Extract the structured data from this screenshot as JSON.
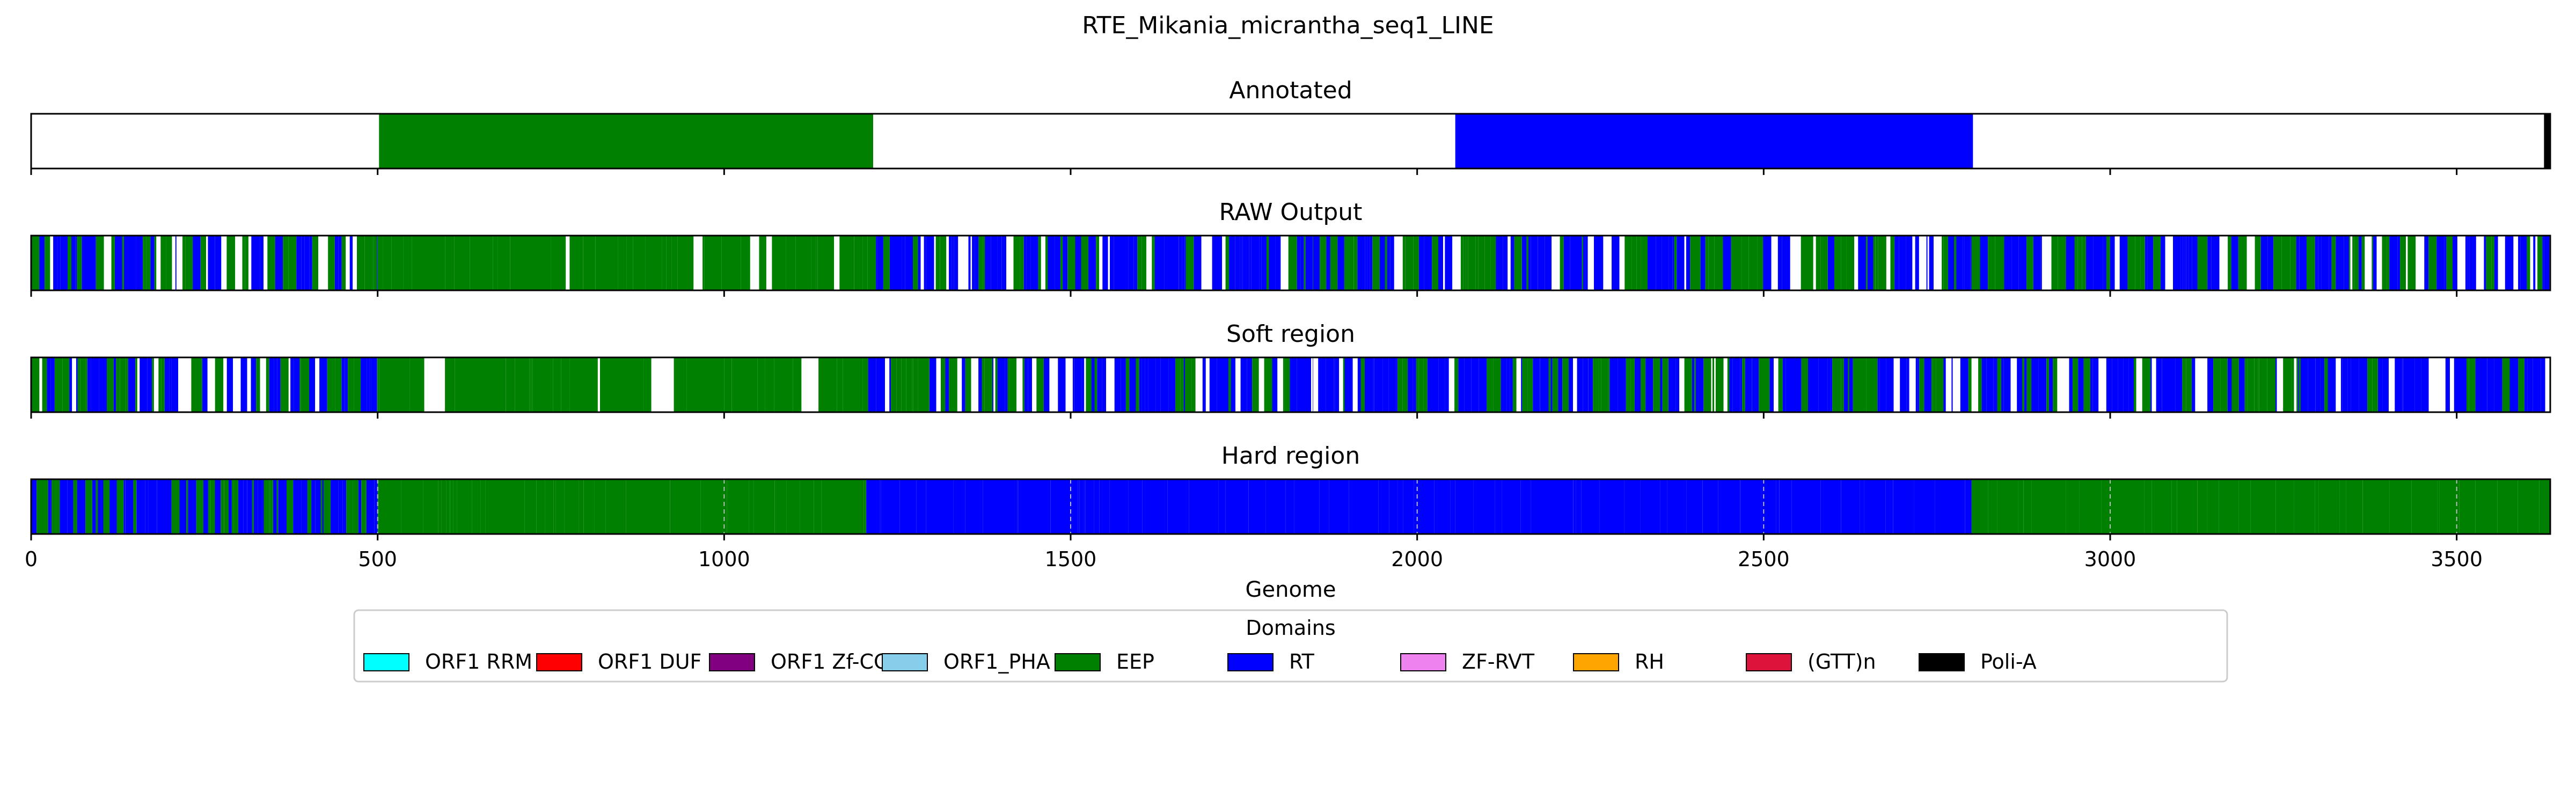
{
  "chart_data": {
    "type": "bar",
    "title": "RTE_Mikania_micrantha_seq1_LINE",
    "xlabel": "Genome",
    "xlim": [
      0,
      3635
    ],
    "xticks": [
      0,
      500,
      1000,
      1500,
      2000,
      2500,
      3000,
      3500
    ],
    "xtick_labels": [
      "0",
      "500",
      "1000",
      "1500",
      "2000",
      "2500",
      "3000",
      "3500"
    ],
    "legend": {
      "title": "Domains",
      "placement": "bottom-center",
      "entries": [
        {
          "name": "ORF1 RRM",
          "color": "#00ffff"
        },
        {
          "name": "ORF1 DUF",
          "color": "#ff0000"
        },
        {
          "name": "ORF1 Zf-CCHC",
          "color": "#800080"
        },
        {
          "name": "ORF1_PHA",
          "color": "#87ceeb"
        },
        {
          "name": "EEP",
          "color": "#008000"
        },
        {
          "name": "RT",
          "color": "#0000ff"
        },
        {
          "name": "ZF-RVT",
          "color": "#ee82ee"
        },
        {
          "name": "RH",
          "color": "#ffa500"
        },
        {
          "name": "(GTT)n",
          "color": "#dc143c"
        },
        {
          "name": "Poli-A",
          "color": "#000000"
        }
      ]
    },
    "tracks": [
      {
        "title": "Annotated",
        "mode": "exact",
        "segments": [
          {
            "domain": "EEP",
            "start": 502,
            "end": 1215
          },
          {
            "domain": "RT",
            "start": 2055,
            "end": 2802
          },
          {
            "domain": "Poli-A",
            "start": 3626,
            "end": 3635
          }
        ]
      },
      {
        "title": "RAW Output",
        "mode": "mixed",
        "segments": [
          {
            "domain": "RT",
            "start": 0,
            "end": 500
          },
          {
            "domain": "EEP",
            "start": 500,
            "end": 1200
          },
          {
            "domain": "RT",
            "start": 1200,
            "end": 1850
          },
          {
            "domain": "EEP",
            "start": 1850,
            "end": 2040
          },
          {
            "domain": "RT",
            "start": 2040,
            "end": 2800
          },
          {
            "domain": "RT",
            "start": 2800,
            "end": 3635
          }
        ]
      },
      {
        "title": "Soft region",
        "mode": "mixed",
        "segments": [
          {
            "domain": "RT",
            "start": 0,
            "end": 500
          },
          {
            "domain": "EEP",
            "start": 500,
            "end": 1200
          },
          {
            "domain": "RT",
            "start": 1200,
            "end": 1850
          },
          {
            "domain": "EEP",
            "start": 1850,
            "end": 2040
          },
          {
            "domain": "RT",
            "start": 2040,
            "end": 2800
          },
          {
            "domain": "RT",
            "start": 2800,
            "end": 3635
          }
        ]
      },
      {
        "title": "Hard region",
        "mode": "hard",
        "segments": [
          {
            "domain": "RT",
            "start": 0,
            "end": 500
          },
          {
            "domain": "EEP",
            "start": 500,
            "end": 1205
          },
          {
            "domain": "RT",
            "start": 1205,
            "end": 2055
          },
          {
            "domain": "RT",
            "start": 2055,
            "end": 2800
          },
          {
            "domain": "EEP",
            "start": 2800,
            "end": 3635
          }
        ]
      }
    ]
  }
}
